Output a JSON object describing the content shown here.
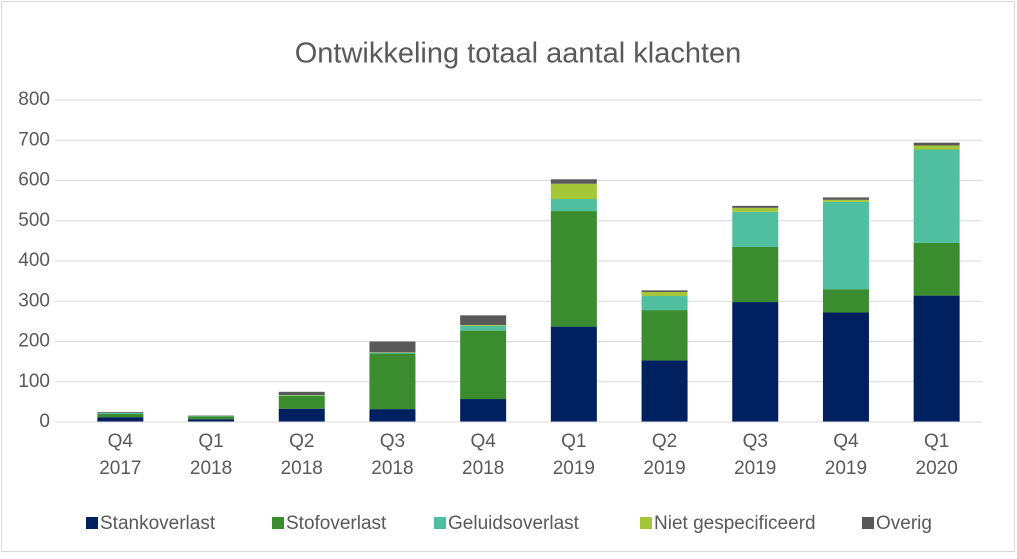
{
  "chart_data": {
    "type": "bar",
    "stacked": true,
    "title": "Ontwikkeling totaal aantal klachten",
    "categories": [
      "Q4 2017",
      "Q1 2018",
      "Q2 2018",
      "Q3 2018",
      "Q4 2018",
      "Q1 2019",
      "Q2 2019",
      "Q3 2019",
      "Q4 2019",
      "Q1 2020"
    ],
    "series": [
      {
        "name": "Stankoverlast",
        "color": "#002060",
        "values": [
          12,
          7,
          33,
          32,
          57,
          237,
          153,
          298,
          272,
          314
        ]
      },
      {
        "name": "Stofoverlast",
        "color": "#3a8c2f",
        "values": [
          8,
          7,
          32,
          138,
          170,
          287,
          125,
          137,
          58,
          131
        ]
      },
      {
        "name": "Geluidsoverlast",
        "color": "#4fbf9f",
        "values": [
          3,
          1,
          1,
          2,
          12,
          30,
          35,
          87,
          217,
          232
        ]
      },
      {
        "name": "Niet gespecificeerd",
        "color": "#a6c639",
        "values": [
          0,
          0,
          1,
          1,
          2,
          38,
          10,
          10,
          5,
          10
        ]
      },
      {
        "name": "Overig",
        "color": "#595959",
        "values": [
          2,
          1,
          8,
          27,
          24,
          11,
          4,
          5,
          6,
          7
        ]
      }
    ],
    "ylim": [
      0,
      800
    ],
    "yticks": [
      0,
      100,
      200,
      300,
      400,
      500,
      600,
      700,
      800
    ],
    "grid": true,
    "legend": "bottom"
  }
}
